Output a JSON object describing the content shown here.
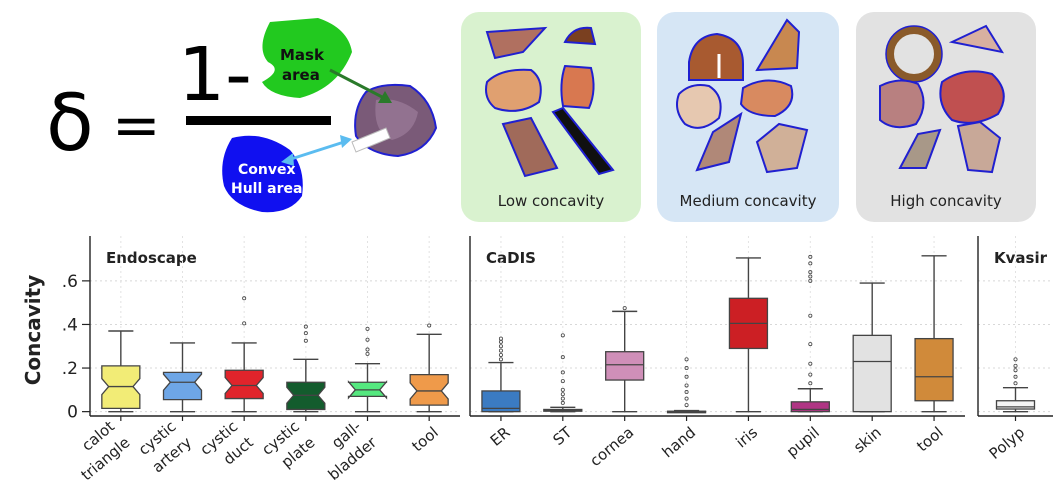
{
  "formula": {
    "delta_symbol": "δ",
    "equals": "=",
    "one_minus": "1-",
    "mask_label_1": "Mask",
    "mask_label_2": "area",
    "hull_label_1": "Convex",
    "hull_label_2": "Hull area",
    "colors": {
      "mask": "#22c91f",
      "hull": "#1010f0",
      "mask_arrow": "#2a7a2a",
      "hull_arrow": "#5bbcf0"
    }
  },
  "concavity_panels": [
    {
      "label": "Low concavity",
      "bg": "#d9f2cf"
    },
    {
      "label": "Medium concavity",
      "bg": "#d6e6f5"
    },
    {
      "label": "High concavity",
      "bg": "#e2e2e2"
    }
  ],
  "chart_data": {
    "type": "box",
    "ylabel": "Concavity",
    "yticks": [
      ".6",
      ".4",
      ".2",
      "0"
    ],
    "ylim": [
      -0.02,
      0.76
    ],
    "grid": true,
    "panels": [
      {
        "title": "Endoscape",
        "notched": true,
        "categories": [
          {
            "label": [
              "calot",
              "triangle"
            ],
            "color": "#f2ec76",
            "whislo": 0.0,
            "q1": 0.015,
            "med": 0.115,
            "q3": 0.21,
            "whishi": 0.37,
            "fliers": []
          },
          {
            "label": [
              "cystic",
              "artery"
            ],
            "color": "#6ea6e6",
            "whislo": 0.0,
            "q1": 0.055,
            "med": 0.135,
            "q3": 0.18,
            "whishi": 0.315,
            "fliers": []
          },
          {
            "label": [
              "cystic",
              "duct"
            ],
            "color": "#e0242b",
            "whislo": 0.0,
            "q1": 0.06,
            "med": 0.12,
            "q3": 0.19,
            "whishi": 0.315,
            "fliers": [
              0.405,
              0.52
            ]
          },
          {
            "label": [
              "cystic",
              "plate"
            ],
            "color": "#135c2d",
            "whislo": 0.0,
            "q1": 0.01,
            "med": 0.075,
            "q3": 0.135,
            "whishi": 0.24,
            "fliers": [
              0.325,
              0.36,
              0.39
            ]
          },
          {
            "label": [
              "gall-",
              "bladder"
            ],
            "color": "#55e87f",
            "whislo": 0.0,
            "q1": 0.07,
            "med": 0.1,
            "q3": 0.135,
            "whishi": 0.22,
            "fliers": [
              0.265,
              0.285,
              0.33,
              0.38
            ]
          },
          {
            "label": [
              "tool"
            ],
            "color": "#ef9a4a",
            "whislo": 0.0,
            "q1": 0.03,
            "med": 0.095,
            "q3": 0.17,
            "whishi": 0.355,
            "fliers": [
              0.395
            ]
          }
        ]
      },
      {
        "title": "CaDIS",
        "notched": false,
        "categories": [
          {
            "label": [
              "ER"
            ],
            "color": "#3b7bc2",
            "whislo": 0.0,
            "q1": 0.0,
            "med": 0.015,
            "q3": 0.095,
            "whishi": 0.225,
            "fliers": [
              0.24,
              0.26,
              0.28,
              0.3,
              0.32,
              0.335
            ]
          },
          {
            "label": [
              "ST"
            ],
            "color": "#3a5e34",
            "whislo": 0.0,
            "q1": 0.002,
            "med": 0.005,
            "q3": 0.01,
            "whishi": 0.02,
            "fliers": [
              0.04,
              0.06,
              0.08,
              0.1,
              0.14,
              0.18,
              0.25,
              0.35
            ]
          },
          {
            "label": [
              "cornea"
            ],
            "color": "#cf8fb8",
            "whislo": 0.0,
            "q1": 0.145,
            "med": 0.215,
            "q3": 0.275,
            "whishi": 0.46,
            "fliers": [
              0.475
            ]
          },
          {
            "label": [
              "hand"
            ],
            "color": "#555555",
            "whislo": 0.0,
            "q1": 0.0,
            "med": 0.0,
            "q3": 0.002,
            "whishi": 0.005,
            "fliers": [
              0.03,
              0.06,
              0.09,
              0.12,
              0.16,
              0.2,
              0.24
            ]
          },
          {
            "label": [
              "iris"
            ],
            "color": "#cc1f24",
            "whislo": 0.0,
            "q1": 0.29,
            "med": 0.405,
            "q3": 0.52,
            "whishi": 0.705,
            "fliers": []
          },
          {
            "label": [
              "pupil"
            ],
            "color": "#b03584",
            "whislo": 0.0,
            "q1": 0.0,
            "med": 0.01,
            "q3": 0.045,
            "whishi": 0.105,
            "fliers": [
              0.13,
              0.17,
              0.22,
              0.31,
              0.44,
              0.6,
              0.62,
              0.64,
              0.68,
              0.71
            ]
          },
          {
            "label": [
              "skin"
            ],
            "color": "#e2e2e2",
            "whislo": 0.0,
            "q1": 0.0,
            "med": 0.23,
            "q3": 0.35,
            "whishi": 0.59,
            "fliers": []
          },
          {
            "label": [
              "tool"
            ],
            "color": "#d08a3a",
            "whislo": 0.0,
            "q1": 0.05,
            "med": 0.16,
            "q3": 0.335,
            "whishi": 0.715,
            "fliers": []
          }
        ]
      },
      {
        "title": "Kvasir",
        "notched": false,
        "categories": [
          {
            "label": [
              "Polyp"
            ],
            "color": "#f4f4f4",
            "whislo": 0.0,
            "q1": 0.012,
            "med": 0.022,
            "q3": 0.05,
            "whishi": 0.11,
            "fliers": [
              0.13,
              0.16,
              0.19,
              0.21,
              0.24
            ]
          }
        ]
      }
    ]
  }
}
